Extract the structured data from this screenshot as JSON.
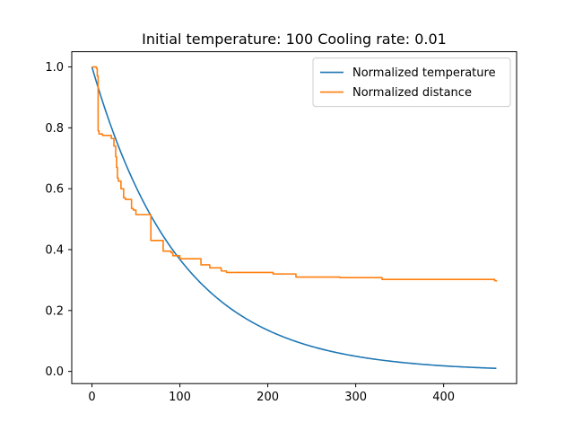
{
  "chart_data": {
    "type": "line",
    "title": "Initial temperature: 100 Cooling rate: 0.01",
    "xlabel": "",
    "ylabel": "",
    "xlim": [
      -23,
      483
    ],
    "ylim": [
      -0.04,
      1.05
    ],
    "xticks": [
      0,
      100,
      200,
      300,
      400
    ],
    "yticks": [
      0.0,
      0.2,
      0.4,
      0.6,
      0.8,
      1.0
    ],
    "ytick_labels": [
      "0.0",
      "0.2",
      "0.4",
      "0.6",
      "0.8",
      "1.0"
    ],
    "grid": false,
    "legend_position": "top-right",
    "series": [
      {
        "name": "Normalized temperature",
        "color": "#1f77b4",
        "kind": "exponential",
        "x_start": 0,
        "x_end": 460,
        "decay_rate": 0.01
      },
      {
        "name": "Normalized distance",
        "color": "#ff7f0e",
        "kind": "step",
        "points": [
          [
            0,
            1.0
          ],
          [
            3,
            1.0
          ],
          [
            5,
            0.995
          ],
          [
            6,
            0.97
          ],
          [
            7,
            0.79
          ],
          [
            8,
            0.78
          ],
          [
            12,
            0.775
          ],
          [
            20,
            0.775
          ],
          [
            22,
            0.765
          ],
          [
            25,
            0.74
          ],
          [
            27,
            0.705
          ],
          [
            28,
            0.67
          ],
          [
            29,
            0.635
          ],
          [
            30,
            0.625
          ],
          [
            33,
            0.6
          ],
          [
            36,
            0.57
          ],
          [
            38,
            0.565
          ],
          [
            44,
            0.565
          ],
          [
            45,
            0.535
          ],
          [
            47,
            0.53
          ],
          [
            50,
            0.515
          ],
          [
            66,
            0.515
          ],
          [
            67,
            0.43
          ],
          [
            80,
            0.43
          ],
          [
            81,
            0.395
          ],
          [
            90,
            0.39
          ],
          [
            92,
            0.38
          ],
          [
            100,
            0.37
          ],
          [
            122,
            0.37
          ],
          [
            124,
            0.35
          ],
          [
            132,
            0.35
          ],
          [
            134,
            0.34
          ],
          [
            145,
            0.34
          ],
          [
            147,
            0.33
          ],
          [
            153,
            0.325
          ],
          [
            204,
            0.325
          ],
          [
            206,
            0.32
          ],
          [
            230,
            0.32
          ],
          [
            232,
            0.31
          ],
          [
            280,
            0.31
          ],
          [
            282,
            0.308
          ],
          [
            328,
            0.308
          ],
          [
            330,
            0.302
          ],
          [
            455,
            0.302
          ],
          [
            458,
            0.298
          ],
          [
            460,
            0.295
          ]
        ]
      }
    ]
  }
}
